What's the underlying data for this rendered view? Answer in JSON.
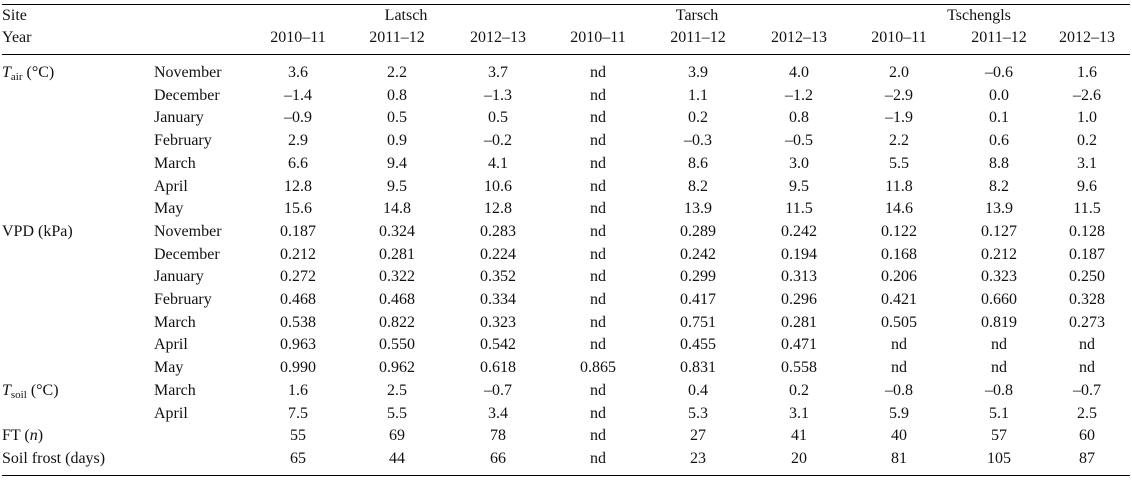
{
  "header": {
    "site_label": "Site",
    "year_label": "Year",
    "sites": [
      "Latsch",
      "Tarsch",
      "Tschengls"
    ],
    "years": [
      "2010–11",
      "2011–12",
      "2012–13",
      "2010–11",
      "2011–12",
      "2012–13",
      "2010–11",
      "2011–12",
      "2012–13"
    ]
  },
  "rows": [
    {
      "var_main": "T",
      "var_sub": "air",
      "var_suffix": " (°C)",
      "month": "November",
      "values": [
        "3.6",
        "2.2",
        "3.7",
        "nd",
        "3.9",
        "4.0",
        "2.0",
        "–0.6",
        "1.6"
      ]
    },
    {
      "var_main": "",
      "var_sub": "",
      "var_suffix": "",
      "month": "December",
      "values": [
        "–1.4",
        "0.8",
        "–1.3",
        "nd",
        "1.1",
        "–1.2",
        "–2.9",
        "0.0",
        "–2.6"
      ]
    },
    {
      "var_main": "",
      "var_sub": "",
      "var_suffix": "",
      "month": "January",
      "values": [
        "–0.9",
        "0.5",
        "0.5",
        "nd",
        "0.2",
        "0.8",
        "–1.9",
        "0.1",
        "1.0"
      ]
    },
    {
      "var_main": "",
      "var_sub": "",
      "var_suffix": "",
      "month": "February",
      "values": [
        "2.9",
        "0.9",
        "–0.2",
        "nd",
        "–0.3",
        "–0.5",
        "2.2",
        "0.6",
        "0.2"
      ]
    },
    {
      "var_main": "",
      "var_sub": "",
      "var_suffix": "",
      "month": "March",
      "values": [
        "6.6",
        "9.4",
        "4.1",
        "nd",
        "8.6",
        "3.0",
        "5.5",
        "8.8",
        "3.1"
      ]
    },
    {
      "var_main": "",
      "var_sub": "",
      "var_suffix": "",
      "month": "April",
      "values": [
        "12.8",
        "9.5",
        "10.6",
        "nd",
        "8.2",
        "9.5",
        "11.8",
        "8.2",
        "9.6"
      ]
    },
    {
      "var_main": "",
      "var_sub": "",
      "var_suffix": "",
      "month": "May",
      "values": [
        "15.6",
        "14.8",
        "12.8",
        "nd",
        "13.9",
        "11.5",
        "14.6",
        "13.9",
        "11.5"
      ]
    },
    {
      "var_plain": "VPD (kPa)",
      "month": "November",
      "values": [
        "0.187",
        "0.324",
        "0.283",
        "nd",
        "0.289",
        "0.242",
        "0.122",
        "0.127",
        "0.128"
      ]
    },
    {
      "var_plain": "",
      "month": "December",
      "values": [
        "0.212",
        "0.281",
        "0.224",
        "nd",
        "0.242",
        "0.194",
        "0.168",
        "0.212",
        "0.187"
      ]
    },
    {
      "var_plain": "",
      "month": "January",
      "values": [
        "0.272",
        "0.322",
        "0.352",
        "nd",
        "0.299",
        "0.313",
        "0.206",
        "0.323",
        "0.250"
      ]
    },
    {
      "var_plain": "",
      "month": "February",
      "values": [
        "0.468",
        "0.468",
        "0.334",
        "nd",
        "0.417",
        "0.296",
        "0.421",
        "0.660",
        "0.328"
      ]
    },
    {
      "var_plain": "",
      "month": "March",
      "values": [
        "0.538",
        "0.822",
        "0.323",
        "nd",
        "0.751",
        "0.281",
        "0.505",
        "0.819",
        "0.273"
      ]
    },
    {
      "var_plain": "",
      "month": "April",
      "values": [
        "0.963",
        "0.550",
        "0.542",
        "nd",
        "0.455",
        "0.471",
        "nd",
        "nd",
        "nd"
      ]
    },
    {
      "var_plain": "",
      "month": "May",
      "values": [
        "0.990",
        "0.962",
        "0.618",
        "0.865",
        "0.831",
        "0.558",
        "nd",
        "nd",
        "nd"
      ]
    },
    {
      "var_main": "T",
      "var_sub": "soil",
      "var_suffix": " (°C)",
      "month": "March",
      "values": [
        "1.6",
        "2.5",
        "–0.7",
        "nd",
        "0.4",
        "0.2",
        "–0.8",
        "–0.8",
        "–0.7"
      ]
    },
    {
      "var_main": "",
      "var_sub": "",
      "var_suffix": "",
      "month": "April",
      "values": [
        "7.5",
        "5.5",
        "3.4",
        "nd",
        "5.3",
        "3.1",
        "5.9",
        "5.1",
        "2.5"
      ]
    },
    {
      "var_ft": true,
      "var_plain": "FT (",
      "var_ital": "n",
      "var_close": ")",
      "month": "",
      "values": [
        "55",
        "69",
        "78",
        "nd",
        "27",
        "41",
        "40",
        "57",
        "60"
      ]
    },
    {
      "var_plain": "Soil frost (days)",
      "month": "",
      "values": [
        "65",
        "44",
        "66",
        "nd",
        "23",
        "20",
        "81",
        "105",
        "87"
      ]
    }
  ]
}
